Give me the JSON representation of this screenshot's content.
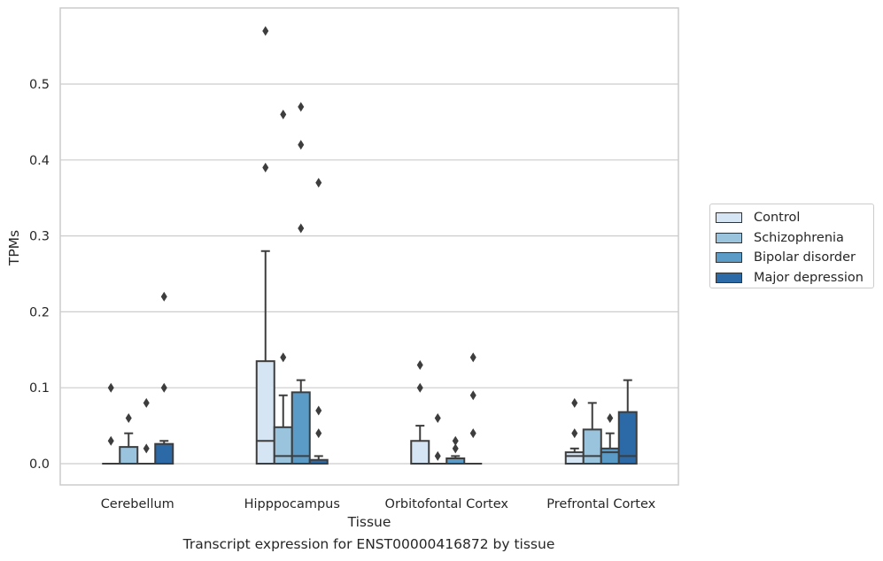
{
  "chart_data": {
    "type": "box",
    "caption": "Transcript expression for ENST00000416872 by tissue",
    "xlabel": "Tissue",
    "ylabel": "TPMs",
    "ylim": [
      -0.028,
      0.6
    ],
    "yticks": [
      0.0,
      0.1,
      0.2,
      0.3,
      0.4,
      0.5
    ],
    "ytick_labels": [
      "0.0",
      "0.1",
      "0.2",
      "0.3",
      "0.4",
      "0.5"
    ],
    "grid": "horizontal",
    "legend_position": "right",
    "categories": [
      "Cerebellum",
      "Hipppocampus",
      "Orbitofontal Cortex",
      "Prefrontal Cortex"
    ],
    "series": [
      {
        "name": "Control",
        "color": "#d6e5f4",
        "boxes": [
          {
            "q1": 0,
            "median": 0,
            "q3": 0,
            "whisker_low": 0,
            "whisker_high": 0,
            "outliers": [
              0.1,
              0.03
            ]
          },
          {
            "q1": 0,
            "median": 0.03,
            "q3": 0.135,
            "whisker_low": 0,
            "whisker_high": 0.28,
            "outliers": [
              0.57,
              0.39
            ]
          },
          {
            "q1": 0,
            "median": 0,
            "q3": 0.03,
            "whisker_low": 0,
            "whisker_high": 0.05,
            "outliers": [
              0.13,
              0.1
            ]
          },
          {
            "q1": 0,
            "median": 0.01,
            "q3": 0.015,
            "whisker_low": 0,
            "whisker_high": 0.02,
            "outliers": [
              0.08,
              0.04
            ]
          }
        ]
      },
      {
        "name": "Schizophrenia",
        "color": "#9ac4dd",
        "boxes": [
          {
            "q1": 0,
            "median": 0,
            "q3": 0.022,
            "whisker_low": 0,
            "whisker_high": 0.04,
            "outliers": [
              0.06
            ]
          },
          {
            "q1": 0,
            "median": 0.01,
            "q3": 0.048,
            "whisker_low": 0,
            "whisker_high": 0.09,
            "outliers": [
              0.46,
              0.14
            ]
          },
          {
            "q1": 0,
            "median": 0,
            "q3": 0,
            "whisker_low": 0,
            "whisker_high": 0,
            "outliers": [
              0.06,
              0.01
            ]
          },
          {
            "q1": 0,
            "median": 0.01,
            "q3": 0.045,
            "whisker_low": 0,
            "whisker_high": 0.08,
            "outliers": []
          }
        ]
      },
      {
        "name": "Bipolar disorder",
        "color": "#5a9bc8",
        "boxes": [
          {
            "q1": 0,
            "median": 0,
            "q3": 0,
            "whisker_low": 0,
            "whisker_high": 0,
            "outliers": [
              0.08,
              0.02
            ]
          },
          {
            "q1": 0,
            "median": 0.01,
            "q3": 0.094,
            "whisker_low": 0,
            "whisker_high": 0.11,
            "outliers": [
              0.47,
              0.42,
              0.31
            ]
          },
          {
            "q1": 0,
            "median": 0,
            "q3": 0.007,
            "whisker_low": 0,
            "whisker_high": 0.01,
            "outliers": [
              0.03,
              0.02
            ]
          },
          {
            "q1": 0,
            "median": 0.015,
            "q3": 0.02,
            "whisker_low": 0,
            "whisker_high": 0.04,
            "outliers": [
              0.06
            ]
          }
        ]
      },
      {
        "name": "Major depression",
        "color": "#2b6aa7",
        "boxes": [
          {
            "q1": 0,
            "median": 0,
            "q3": 0.026,
            "whisker_low": 0,
            "whisker_high": 0.03,
            "outliers": [
              0.22,
              0.1
            ]
          },
          {
            "q1": 0,
            "median": 0,
            "q3": 0.005,
            "whisker_low": 0,
            "whisker_high": 0.01,
            "outliers": [
              0.37,
              0.07,
              0.04
            ]
          },
          {
            "q1": 0,
            "median": 0,
            "q3": 0,
            "whisker_low": 0,
            "whisker_high": 0,
            "outliers": [
              0.14,
              0.09,
              0.04
            ]
          },
          {
            "q1": 0,
            "median": 0.01,
            "q3": 0.068,
            "whisker_low": 0,
            "whisker_high": 0.11,
            "outliers": []
          }
        ]
      }
    ]
  },
  "colors": {
    "box_edge": "#3d3d3d",
    "grid": "#cccccc",
    "frame": "#cccccc",
    "text": "#262626"
  }
}
